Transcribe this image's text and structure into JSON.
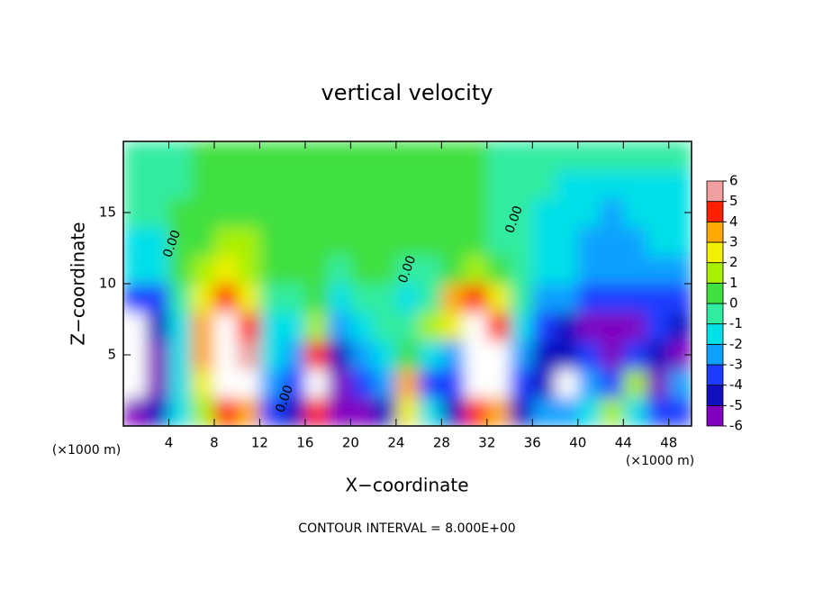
{
  "chart_data": {
    "type": "heatmap",
    "title": "vertical velocity",
    "xlabel": "X−coordinate",
    "ylabel": "Z−coordinate",
    "x_unit_left": "(×1000 m)",
    "x_unit_right": "(×1000 m)",
    "footer": "CONTOUR INTERVAL = 8.000E+00",
    "xlim": [
      0,
      50
    ],
    "ylim": [
      0,
      20
    ],
    "xticks": [
      4,
      8,
      12,
      16,
      20,
      24,
      28,
      32,
      36,
      40,
      44,
      48
    ],
    "yticks": [
      5,
      10,
      15
    ],
    "x": [
      1,
      3,
      5,
      7,
      9,
      11,
      13,
      15,
      17,
      19,
      21,
      23,
      25,
      27,
      29,
      31,
      33,
      35,
      37,
      39,
      41,
      43,
      45,
      47,
      49
    ],
    "y": [
      1,
      3,
      5,
      7,
      9,
      11,
      13,
      15,
      17,
      19
    ],
    "values": [
      [
        -5,
        -8,
        -8,
        -7,
        -3,
        -1.5,
        -1,
        -0.5,
        -0.3,
        -0.3
      ],
      [
        -4,
        -5,
        -5,
        -4,
        -3,
        -1.5,
        -1,
        -0.5,
        -0.3,
        -0.3
      ],
      [
        -1,
        -1,
        -1.5,
        -1,
        0,
        0.3,
        0.3,
        0.3,
        0,
        0
      ],
      [
        2,
        3,
        4,
        4,
        3,
        2,
        1,
        0.5,
        0.3,
        0.2
      ],
      [
        5,
        8,
        9,
        7,
        5,
        2.5,
        1.5,
        0.8,
        0.5,
        0.3
      ],
      [
        4,
        7,
        6,
        5,
        3,
        2,
        1.5,
        1,
        0.5,
        0.3
      ],
      [
        -3,
        -2,
        -1,
        -1,
        0,
        1,
        1,
        0.8,
        0.5,
        0.3
      ],
      [
        -4,
        -3,
        -2,
        -1,
        0,
        0.5,
        0.8,
        0.6,
        0.5,
        0.3
      ],
      [
        5,
        7,
        5,
        2,
        0.5,
        0.5,
        0.5,
        0.8,
        0.5,
        0.3
      ],
      [
        -5,
        -6,
        -4,
        -2,
        -1,
        0,
        0.5,
        0.8,
        0.5,
        0.3
      ],
      [
        -5,
        -3,
        -2,
        -1,
        0,
        0.5,
        0.5,
        0.8,
        0.5,
        0.3
      ],
      [
        -4,
        -2,
        -1,
        -0.5,
        0,
        0.5,
        1,
        0.8,
        0.5,
        0.3
      ],
      [
        3,
        4,
        1,
        0,
        -1,
        0,
        0.5,
        0.8,
        0.5,
        0.3
      ],
      [
        -1,
        -3,
        -1,
        2,
        0,
        0,
        0.3,
        0.5,
        0.3,
        0.3
      ],
      [
        -4,
        -3,
        -2,
        3,
        4,
        1,
        0.3,
        0.3,
        0.3,
        0.3
      ],
      [
        5,
        8,
        9,
        8,
        5,
        2,
        0.5,
        0.3,
        0.3,
        0.3
      ],
      [
        4,
        7,
        7,
        5,
        3,
        1,
        0,
        0,
        0,
        0
      ],
      [
        -4,
        -3,
        -2,
        -1,
        -0.5,
        -0.3,
        -0.5,
        -0.5,
        -0.3,
        -0.3
      ],
      [
        -2,
        -4,
        -4,
        -3,
        -2,
        -1,
        -1,
        -1,
        -0.5,
        -0.3
      ],
      [
        -2,
        -7,
        -4,
        -4,
        -2,
        -1.5,
        -1.5,
        -1.5,
        -1,
        -0.5
      ],
      [
        -1,
        -2,
        -3,
        -5,
        -3,
        -2,
        -2,
        -1.5,
        -1,
        -0.5
      ],
      [
        2,
        -3,
        -5,
        -5,
        -3,
        -2,
        -2,
        -2,
        -1,
        -0.5
      ],
      [
        -1,
        2,
        -3,
        -5,
        -3,
        -2,
        -2,
        -1,
        -1,
        -0.5
      ],
      [
        -3,
        -5,
        -4,
        -3,
        -3,
        -2,
        -1.5,
        -1.5,
        -1,
        -0.5
      ],
      [
        -3,
        -2,
        -5,
        -4,
        -3,
        -2,
        -1.5,
        -1.5,
        -1,
        -0.5
      ]
    ],
    "colorbar_ticks": [
      -6,
      -5,
      -4,
      -3,
      -2,
      -1,
      0,
      1,
      2,
      3,
      4,
      5,
      6
    ],
    "colorbar_colors": [
      "#8000c0",
      "#1010c0",
      "#1c3cff",
      "#10a0ff",
      "#00e0e8",
      "#30eca0",
      "#40e040",
      "#a8f000",
      "#f0f000",
      "#ffa800",
      "#ff2000",
      "#f0a0a0"
    ],
    "contour_labels": [
      {
        "text": "0.00",
        "x": 4.3,
        "y": 12.8
      },
      {
        "text": "0.00",
        "x": 14.2,
        "y": 1.9
      },
      {
        "text": "0.00",
        "x": 25.0,
        "y": 11.0
      },
      {
        "text": "0.00",
        "x": 34.4,
        "y": 14.5
      }
    ]
  }
}
